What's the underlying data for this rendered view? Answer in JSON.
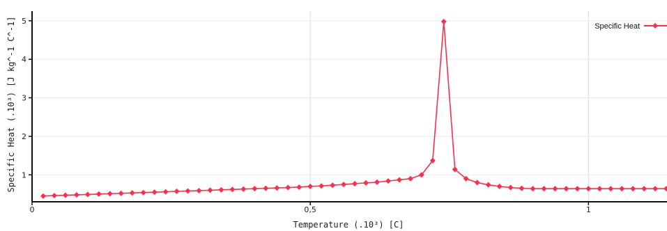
{
  "chart_data": {
    "type": "line",
    "title": "",
    "xlabel": "Temperature (.10³) [C]",
    "ylabel": "Specific Heat  (.10³)  [J kg^-1 C^-1]",
    "xlim": [
      0,
      1.2
    ],
    "ylim": [
      0.3,
      5.25
    ],
    "x_ticks": [
      "0",
      "0,5",
      "1"
    ],
    "y_ticks": [
      "1",
      "2",
      "3",
      "4",
      "5"
    ],
    "grid": "vertical",
    "legend_position": "top-right",
    "series": [
      {
        "name": "Specific Heat",
        "color": "#ff2d4b",
        "x": [
          0.02,
          0.04,
          0.06,
          0.08,
          0.1,
          0.12,
          0.14,
          0.16,
          0.18,
          0.2,
          0.22,
          0.24,
          0.26,
          0.28,
          0.3,
          0.32,
          0.34,
          0.36,
          0.38,
          0.4,
          0.42,
          0.44,
          0.46,
          0.48,
          0.5,
          0.52,
          0.54,
          0.56,
          0.58,
          0.6,
          0.62,
          0.64,
          0.66,
          0.68,
          0.7,
          0.72,
          0.74,
          0.76,
          0.78,
          0.8,
          0.82,
          0.84,
          0.86,
          0.88,
          0.9,
          0.92,
          0.94,
          0.96,
          0.98,
          1.0,
          1.02,
          1.04,
          1.06,
          1.08,
          1.1,
          1.12,
          1.14,
          1.16,
          1.18,
          1.2
        ],
        "y": [
          0.45,
          0.46,
          0.47,
          0.48,
          0.49,
          0.5,
          0.51,
          0.52,
          0.53,
          0.54,
          0.55,
          0.56,
          0.57,
          0.58,
          0.59,
          0.6,
          0.61,
          0.62,
          0.63,
          0.64,
          0.65,
          0.66,
          0.67,
          0.68,
          0.7,
          0.71,
          0.73,
          0.75,
          0.77,
          0.79,
          0.81,
          0.84,
          0.87,
          0.9,
          1.0,
          1.37,
          4.98,
          1.14,
          0.9,
          0.8,
          0.74,
          0.7,
          0.67,
          0.65,
          0.64,
          0.64,
          0.64,
          0.64,
          0.64,
          0.64,
          0.64,
          0.64,
          0.64,
          0.64,
          0.64,
          0.64,
          0.64,
          0.64,
          0.64,
          0.64
        ]
      }
    ]
  }
}
